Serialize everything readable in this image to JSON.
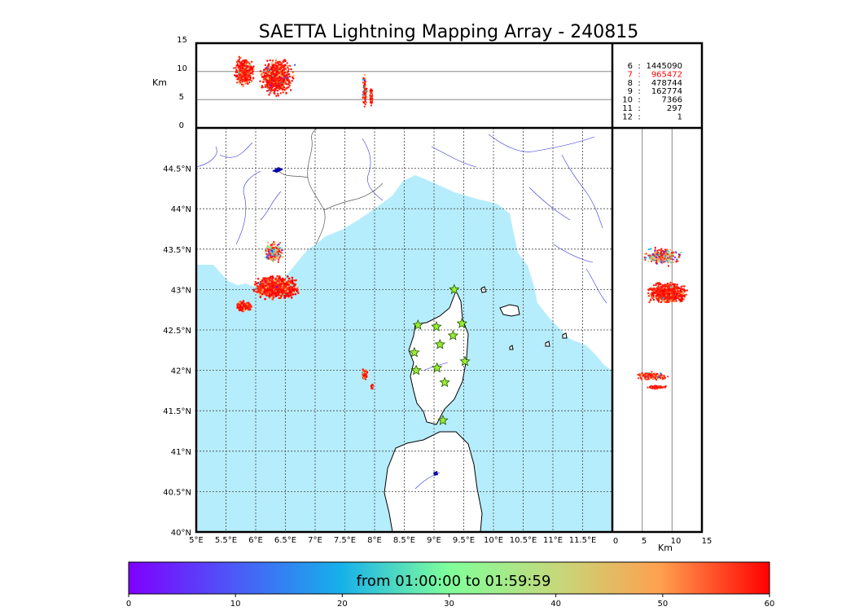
{
  "title": "SAETTA Lightning Mapping Array - 240815",
  "colors": {
    "sea": "#b6edfc",
    "land": "#ffffff",
    "coast": "#000000",
    "rivers": "#3333dd",
    "borders": "#555555",
    "grid": "#444444",
    "station_fill": "#99ee33",
    "station_stroke": "#225500",
    "highlight_count": "#ff0000"
  },
  "top_panel": {
    "ylabel": "Km",
    "yticks": [
      "15",
      "10",
      "5",
      "0"
    ]
  },
  "right_panel": {
    "xlabel": "Km",
    "xticks": [
      "0",
      "5",
      "10",
      "15"
    ]
  },
  "map": {
    "lon_range": [
      5,
      12
    ],
    "lat_range": [
      40,
      45
    ],
    "lon_ticks": [
      "5°E",
      "5.5°E",
      "6°E",
      "6.5°E",
      "7°E",
      "7.5°E",
      "8°E",
      "8.5°E",
      "9°E",
      "9.5°E",
      "10°E",
      "10.5°E",
      "11°E",
      "11.5°E"
    ],
    "lat_ticks": [
      "40°N",
      "40.5°N",
      "41°N",
      "41.5°N",
      "42°N",
      "42.5°N",
      "43°N",
      "43.5°N",
      "44°N",
      "44.5°N"
    ],
    "stations": [
      {
        "lon": 9.34,
        "lat": 43.0
      },
      {
        "lon": 8.73,
        "lat": 42.56
      },
      {
        "lon": 9.04,
        "lat": 42.54
      },
      {
        "lon": 9.47,
        "lat": 42.58
      },
      {
        "lon": 9.1,
        "lat": 42.32
      },
      {
        "lon": 9.32,
        "lat": 42.43
      },
      {
        "lon": 8.67,
        "lat": 42.22
      },
      {
        "lon": 8.7,
        "lat": 42.0
      },
      {
        "lon": 9.05,
        "lat": 42.03
      },
      {
        "lon": 9.52,
        "lat": 42.11
      },
      {
        "lon": 9.18,
        "lat": 41.85
      },
      {
        "lon": 9.15,
        "lat": 41.38
      }
    ]
  },
  "counts": [
    {
      "label": "6",
      "value": "1445090",
      "highlight": false
    },
    {
      "label": "7",
      "value": "965472",
      "highlight": true
    },
    {
      "label": "8",
      "value": "478744",
      "highlight": false
    },
    {
      "label": "9",
      "value": "162774",
      "highlight": false
    },
    {
      "label": "10",
      "value": "7366",
      "highlight": false
    },
    {
      "label": "11",
      "value": "297",
      "highlight": false
    },
    {
      "label": "12",
      "value": "1",
      "highlight": false
    }
  ],
  "colorbar": {
    "label": "from 01:00:00 to 01:59:59",
    "min": 0,
    "max": 60,
    "ticks": [
      "0",
      "10",
      "20",
      "30",
      "40",
      "50",
      "60"
    ],
    "colormap": "rainbow"
  }
}
